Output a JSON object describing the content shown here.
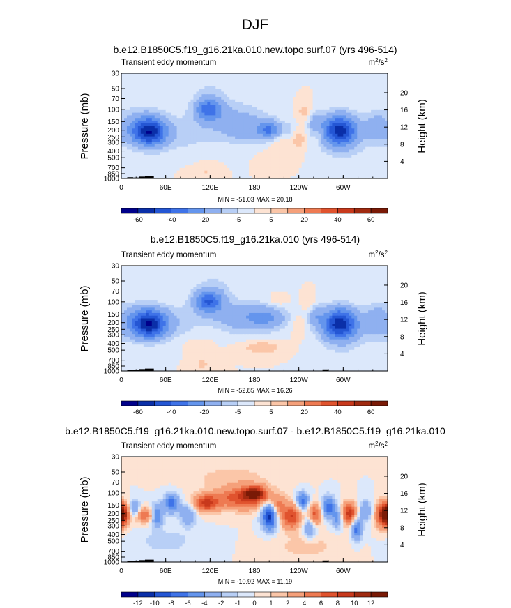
{
  "figure": {
    "title": "DJF"
  },
  "chart_data": [
    {
      "type": "heatmap",
      "title": "b.e12.B1850C5.f19_g16.21ka.010.new.topo.surf.07 (yrs 496-514)",
      "subtitle": "Transient eddy momentum",
      "units": "m²/s²",
      "xlabel": "",
      "ylabel": "Pressure (mb)",
      "y2label": "Height (km)",
      "x_ticks": [
        "0",
        "60E",
        "120E",
        "180",
        "120W",
        "60W"
      ],
      "y_ticks": [
        "30",
        "50",
        "70",
        "100",
        "150",
        "200",
        "250",
        "300",
        "400",
        "500",
        "700",
        "850",
        "1000"
      ],
      "y2_ticks": [
        "20",
        "16",
        "12",
        "8",
        "4"
      ],
      "stats": "MIN = -51.03   MAX = 20.18",
      "min": -51.03,
      "max": 20.18,
      "colorbar_labels": [
        "-60",
        "-40",
        "-20",
        "-5",
        "5",
        "20",
        "40",
        "60"
      ],
      "colors": [
        "#00008b",
        "#0a2fa8",
        "#2456d4",
        "#3f73e8",
        "#6495ed",
        "#8fb0f0",
        "#b8cff6",
        "#dce8fb",
        "#fde3d3",
        "#fbc6a8",
        "#f5a07a",
        "#ee7a52",
        "#e0532e",
        "#c8391c",
        "#a02a10",
        "#7a1a06"
      ],
      "features": [
        {
          "lon": 0,
          "p": 150,
          "v": 4,
          "sx": 5,
          "sy": 0.18
        },
        {
          "lon": 38,
          "p": 210,
          "v": -50,
          "sx": 15,
          "sy": 0.32
        },
        {
          "lon": 15,
          "p": 180,
          "v": -12,
          "sx": 26,
          "sy": 0.42
        },
        {
          "lon": 75,
          "p": 230,
          "v": -7,
          "sx": 30,
          "sy": 0.45
        },
        {
          "lon": 118,
          "p": 100,
          "v": -32,
          "sx": 12,
          "sy": 0.25
        },
        {
          "lon": 120,
          "p": 60,
          "v": -5,
          "sx": 20,
          "sy": 0.45
        },
        {
          "lon": 150,
          "p": 150,
          "v": -12,
          "sx": 32,
          "sy": 0.45
        },
        {
          "lon": 200,
          "p": 200,
          "v": -28,
          "sx": 10,
          "sy": 0.22
        },
        {
          "lon": 172,
          "p": 200,
          "v": -9,
          "sx": 18,
          "sy": 0.3
        },
        {
          "lon": 210,
          "p": 280,
          "v": 5,
          "sx": 10,
          "sy": 0.2
        },
        {
          "lon": 225,
          "p": 190,
          "v": -6,
          "sx": 9,
          "sy": 0.2
        },
        {
          "lon": 240,
          "p": 270,
          "v": 10,
          "sx": 6,
          "sy": 0.25
        },
        {
          "lon": 248,
          "p": 110,
          "v": 8,
          "sx": 7,
          "sy": 0.22
        },
        {
          "lon": 262,
          "p": 150,
          "v": -12,
          "sx": 7,
          "sy": 0.25
        },
        {
          "lon": 268,
          "p": 230,
          "v": 6,
          "sx": 5,
          "sy": 0.2
        },
        {
          "lon": 295,
          "p": 200,
          "v": -51,
          "sx": 16,
          "sy": 0.35
        },
        {
          "lon": 300,
          "p": 300,
          "v": -6,
          "sx": 25,
          "sy": 0.5
        },
        {
          "lon": 345,
          "p": 180,
          "v": -10,
          "sx": 12,
          "sy": 0.35
        },
        {
          "lon": 210,
          "p": 500,
          "v": 4,
          "sx": 15,
          "sy": 0.2
        },
        {
          "lon": 95,
          "p": 900,
          "v": 4,
          "sx": 8,
          "sy": 0.15
        },
        {
          "lon": 115,
          "p": 800,
          "v": 5,
          "sx": 10,
          "sy": 0.2
        },
        {
          "lon": 15,
          "p": 800,
          "v": -3,
          "sx": 5,
          "sy": 0.1
        }
      ],
      "topography": [
        {
          "lon0": 8,
          "lon1": 16,
          "p_top": 960
        },
        {
          "lon0": 16,
          "lon1": 24,
          "p_top": 970
        },
        {
          "lon0": 24,
          "lon1": 32,
          "p_top": 940
        },
        {
          "lon0": 32,
          "lon1": 44,
          "p_top": 925
        }
      ]
    },
    {
      "type": "heatmap",
      "title": "b.e12.B1850C5.f19_g16.21ka.010 (yrs 496-514)",
      "subtitle": "Transient eddy momentum",
      "units": "m²/s²",
      "xlabel": "",
      "ylabel": "Pressure (mb)",
      "y2label": "Height (km)",
      "x_ticks": [
        "0",
        "60E",
        "120E",
        "180",
        "120W",
        "60W"
      ],
      "y_ticks": [
        "30",
        "50",
        "70",
        "100",
        "150",
        "200",
        "250",
        "300",
        "400",
        "500",
        "700",
        "850",
        "1000"
      ],
      "y2_ticks": [
        "20",
        "16",
        "12",
        "8",
        "4"
      ],
      "stats": "MIN = -52.85   MAX = 16.26",
      "min": -52.85,
      "max": 16.26,
      "colorbar_labels": [
        "-60",
        "-40",
        "-20",
        "-5",
        "5",
        "20",
        "40",
        "60"
      ],
      "colors": [
        "#00008b",
        "#0a2fa8",
        "#2456d4",
        "#3f73e8",
        "#6495ed",
        "#8fb0f0",
        "#b8cff6",
        "#dce8fb",
        "#fde3d3",
        "#fbc6a8",
        "#f5a07a",
        "#ee7a52",
        "#e0532e",
        "#c8391c",
        "#a02a10",
        "#7a1a06"
      ],
      "features": [
        {
          "lon": 0,
          "p": 150,
          "v": 5,
          "sx": 5,
          "sy": 0.18
        },
        {
          "lon": 38,
          "p": 210,
          "v": -52,
          "sx": 16,
          "sy": 0.32
        },
        {
          "lon": 15,
          "p": 190,
          "v": -12,
          "sx": 26,
          "sy": 0.42
        },
        {
          "lon": 75,
          "p": 200,
          "v": -7,
          "sx": 25,
          "sy": 0.42
        },
        {
          "lon": 118,
          "p": 100,
          "v": -36,
          "sx": 13,
          "sy": 0.26
        },
        {
          "lon": 125,
          "p": 70,
          "v": -6,
          "sx": 22,
          "sy": 0.5
        },
        {
          "lon": 170,
          "p": 170,
          "v": -18,
          "sx": 30,
          "sy": 0.35
        },
        {
          "lon": 200,
          "p": 170,
          "v": -12,
          "sx": 16,
          "sy": 0.25
        },
        {
          "lon": 210,
          "p": 100,
          "v": 5,
          "sx": 10,
          "sy": 0.15
        },
        {
          "lon": 240,
          "p": 230,
          "v": 6,
          "sx": 6,
          "sy": 0.25
        },
        {
          "lon": 262,
          "p": 150,
          "v": -14,
          "sx": 7,
          "sy": 0.25
        },
        {
          "lon": 255,
          "p": 110,
          "v": 8,
          "sx": 6,
          "sy": 0.2
        },
        {
          "lon": 295,
          "p": 205,
          "v": -52,
          "sx": 16,
          "sy": 0.35
        },
        {
          "lon": 300,
          "p": 300,
          "v": -7,
          "sx": 25,
          "sy": 0.5
        },
        {
          "lon": 345,
          "p": 190,
          "v": -12,
          "sx": 12,
          "sy": 0.35
        },
        {
          "lon": 190,
          "p": 460,
          "v": 10,
          "sx": 18,
          "sy": 0.15
        },
        {
          "lon": 100,
          "p": 400,
          "v": 3,
          "sx": 15,
          "sy": 0.2
        },
        {
          "lon": 110,
          "p": 800,
          "v": 6,
          "sx": 10,
          "sy": 0.2
        },
        {
          "lon": 15,
          "p": 800,
          "v": -3,
          "sx": 5,
          "sy": 0.1
        }
      ],
      "topography": [
        {
          "lon0": 8,
          "lon1": 16,
          "p_top": 960
        },
        {
          "lon0": 16,
          "lon1": 24,
          "p_top": 970
        },
        {
          "lon0": 24,
          "lon1": 32,
          "p_top": 940
        },
        {
          "lon0": 32,
          "lon1": 44,
          "p_top": 925
        },
        {
          "lon0": 272,
          "lon1": 280,
          "p_top": 950
        }
      ]
    },
    {
      "type": "heatmap",
      "title": "b.e12.B1850C5.f19_g16.21ka.010.new.topo.surf.07 - b.e12.B1850C5.f19_g16.21ka.010",
      "subtitle": "Transient eddy momentum",
      "units": "m²/s²",
      "xlabel": "",
      "ylabel": "Pressure (mb)",
      "y2label": "Height (km)",
      "x_ticks": [
        "0",
        "60E",
        "120E",
        "180",
        "120W",
        "60W"
      ],
      "y_ticks": [
        "30",
        "50",
        "70",
        "100",
        "150",
        "200",
        "250",
        "300",
        "400",
        "500",
        "700",
        "850",
        "1000"
      ],
      "y2_ticks": [
        "20",
        "16",
        "12",
        "8",
        "4"
      ],
      "stats": "MIN = -10.92   MAX = 11.19",
      "min": -10.92,
      "max": 11.19,
      "colorbar_labels": [
        "-12",
        "-10",
        "-8",
        "-6",
        "-4",
        "-2",
        "-1",
        "0",
        "1",
        "2",
        "4",
        "6",
        "8",
        "10",
        "12"
      ],
      "colors": [
        "#00008b",
        "#0a2fa8",
        "#2456d4",
        "#3f73e8",
        "#6495ed",
        "#8fb0f0",
        "#b8cff6",
        "#dce8fb",
        "#fde3d3",
        "#fbc6a8",
        "#f5a07a",
        "#ee7a52",
        "#e0532e",
        "#c8391c",
        "#a02a10",
        "#7a1a06"
      ],
      "features": [
        {
          "lon": 2,
          "p": 200,
          "v": 9,
          "sx": 6,
          "sy": 0.22
        },
        {
          "lon": 18,
          "p": 170,
          "v": -5,
          "sx": 6,
          "sy": 0.2
        },
        {
          "lon": 32,
          "p": 210,
          "v": 6,
          "sx": 10,
          "sy": 0.18
        },
        {
          "lon": 48,
          "p": 210,
          "v": -7,
          "sx": 6,
          "sy": 0.25
        },
        {
          "lon": 68,
          "p": 140,
          "v": -7,
          "sx": 7,
          "sy": 0.22
        },
        {
          "lon": 90,
          "p": 210,
          "v": -4,
          "sx": 8,
          "sy": 0.25
        },
        {
          "lon": 115,
          "p": 140,
          "v": 8,
          "sx": 12,
          "sy": 0.2
        },
        {
          "lon": 165,
          "p": 120,
          "v": 8,
          "sx": 25,
          "sy": 0.25
        },
        {
          "lon": 180,
          "p": 100,
          "v": 10,
          "sx": 10,
          "sy": 0.15
        },
        {
          "lon": 200,
          "p": 220,
          "v": -11,
          "sx": 7,
          "sy": 0.3
        },
        {
          "lon": 212,
          "p": 160,
          "v": 4,
          "sx": 7,
          "sy": 0.25
        },
        {
          "lon": 230,
          "p": 220,
          "v": 8,
          "sx": 9,
          "sy": 0.28
        },
        {
          "lon": 245,
          "p": 130,
          "v": -7,
          "sx": 6,
          "sy": 0.2
        },
        {
          "lon": 255,
          "p": 320,
          "v": -5,
          "sx": 6,
          "sy": 0.25
        },
        {
          "lon": 262,
          "p": 210,
          "v": 7,
          "sx": 6,
          "sy": 0.25
        },
        {
          "lon": 280,
          "p": 160,
          "v": -7,
          "sx": 6,
          "sy": 0.25
        },
        {
          "lon": 292,
          "p": 230,
          "v": -5,
          "sx": 5,
          "sy": 0.25
        },
        {
          "lon": 308,
          "p": 200,
          "v": 9,
          "sx": 7,
          "sy": 0.25
        },
        {
          "lon": 318,
          "p": 330,
          "v": -7,
          "sx": 5,
          "sy": 0.25
        },
        {
          "lon": 330,
          "p": 180,
          "v": -4,
          "sx": 6,
          "sy": 0.25
        },
        {
          "lon": 355,
          "p": 210,
          "v": 11,
          "sx": 7,
          "sy": 0.28
        },
        {
          "lon": 150,
          "p": 60,
          "v": 1.5,
          "sx": 40,
          "sy": 0.3
        },
        {
          "lon": 60,
          "p": 500,
          "v": -1.5,
          "sx": 30,
          "sy": 0.3
        },
        {
          "lon": 250,
          "p": 600,
          "v": 1.5,
          "sx": 30,
          "sy": 0.3
        }
      ],
      "topography": [
        {
          "lon0": 8,
          "lon1": 16,
          "p_top": 960
        },
        {
          "lon0": 16,
          "lon1": 24,
          "p_top": 970
        },
        {
          "lon0": 24,
          "lon1": 32,
          "p_top": 940
        },
        {
          "lon0": 32,
          "lon1": 44,
          "p_top": 925
        },
        {
          "lon0": 272,
          "lon1": 280,
          "p_top": 950
        }
      ]
    }
  ]
}
